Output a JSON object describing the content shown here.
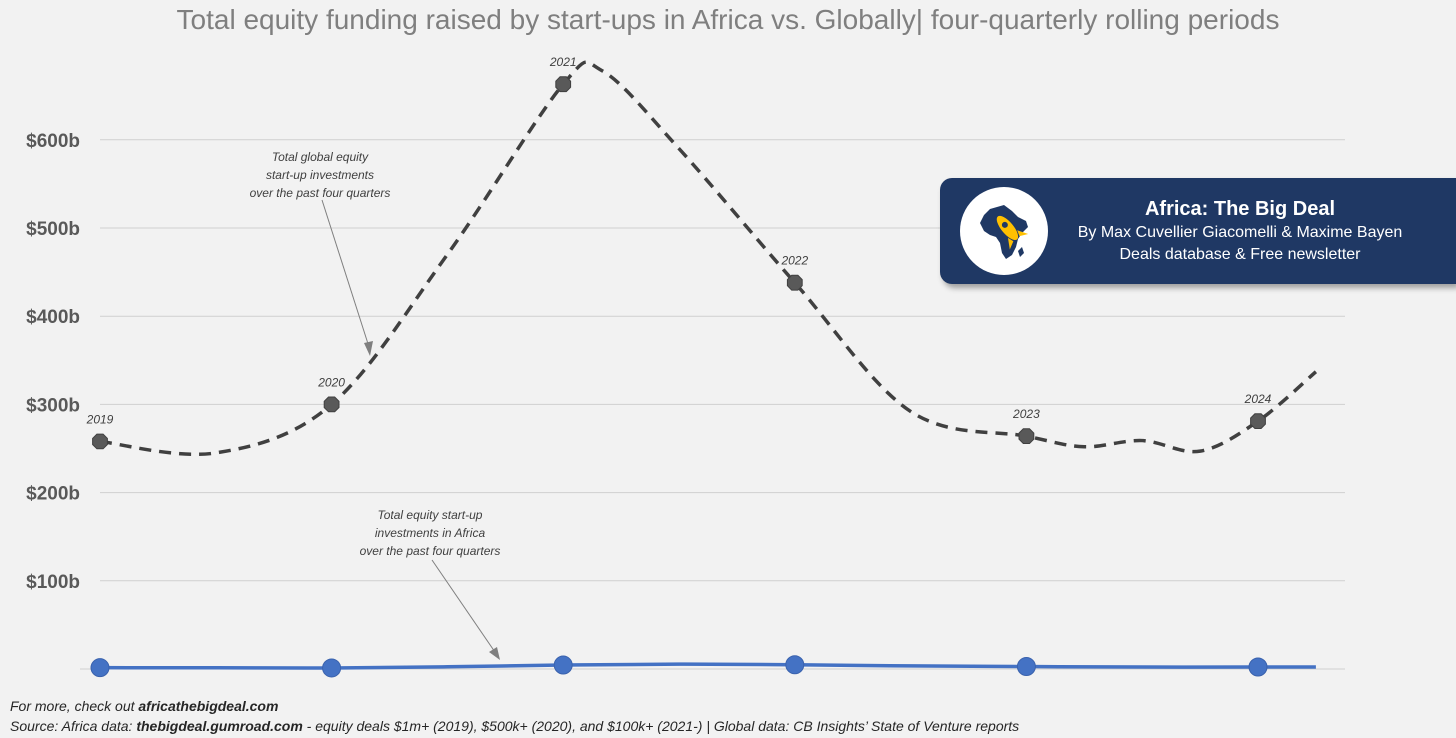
{
  "chart_data": {
    "type": "line",
    "title": "Total equity funding raised by start-ups in Africa vs. Globally| four-quarterly rolling periods",
    "y_ticks": [
      "$100b",
      "$200b",
      "$300b",
      "$400b",
      "$500b",
      "$600b"
    ],
    "ylim": [
      0,
      700
    ],
    "grid": true,
    "series": [
      {
        "name": "Total global equity start-up investments over the past four quarters",
        "style": "dashed",
        "color": "#404040",
        "x": [
          2019.0,
          2019.5,
          2020.0,
          2020.5,
          2021.0,
          2021.17,
          2021.5,
          2022.0,
          2022.5,
          2023.0,
          2023.25,
          2023.5,
          2023.75,
          2024.0,
          2024.25
        ],
        "values": [
          258,
          245,
          300,
          470,
          663,
          678,
          590,
          438,
          292,
          264,
          252,
          259,
          247,
          281,
          337
        ],
        "year_markers": [
          {
            "label": "2019",
            "x": 2019.0,
            "value": 258
          },
          {
            "label": "2020",
            "x": 2020.0,
            "value": 300
          },
          {
            "label": "2021",
            "x": 2021.0,
            "value": 663
          },
          {
            "label": "2022",
            "x": 2022.0,
            "value": 438
          },
          {
            "label": "2023",
            "x": 2023.0,
            "value": 264
          },
          {
            "label": "2024",
            "x": 2024.0,
            "value": 281
          }
        ]
      },
      {
        "name": "Total equity start-up investments in Africa over the past four quarters",
        "style": "solid",
        "color": "#4472c4",
        "x": [
          2019.0,
          2019.5,
          2020.0,
          2020.5,
          2021.0,
          2021.5,
          2022.0,
          2022.5,
          2023.0,
          2023.5,
          2024.0,
          2024.25
        ],
        "values": [
          1.5,
          1.4,
          1.2,
          2.5,
          4.5,
          5.5,
          4.8,
          3.5,
          2.8,
          2.2,
          2.3,
          2.2
        ],
        "markers_at": [
          2019.0,
          2020.0,
          2021.0,
          2022.0,
          2023.0,
          2024.0
        ]
      }
    ],
    "annotations": {
      "global": [
        "Total global equity",
        "start-up investments",
        "over the past four quarters"
      ],
      "africa": [
        "Total equity start-up",
        "investments in Africa",
        "over the past four quarters"
      ]
    }
  },
  "brand": {
    "title": "Africa: The Big Deal",
    "line1": "By Max Cuvellier Giacomelli & Maxime Bayen",
    "line2": "Deals database & Free newsletter",
    "logo_icon": "africa-rocket-icon",
    "colors": {
      "box": "#1f3864",
      "continent": "#1f3864",
      "rocket": "#ffc000"
    }
  },
  "footer": {
    "line1_prefix": "For more, check out ",
    "line1_link": "africathebigdeal.com",
    "line2_prefix": "Source: Africa data: ",
    "line2_link": "thebigdeal.gumroad.com",
    "line2_suffix": " - equity deals $1m+ (2019), $500k+ (2020), and $100k+ (2021-) | Global data: CB Insights’ State of Venture reports"
  }
}
